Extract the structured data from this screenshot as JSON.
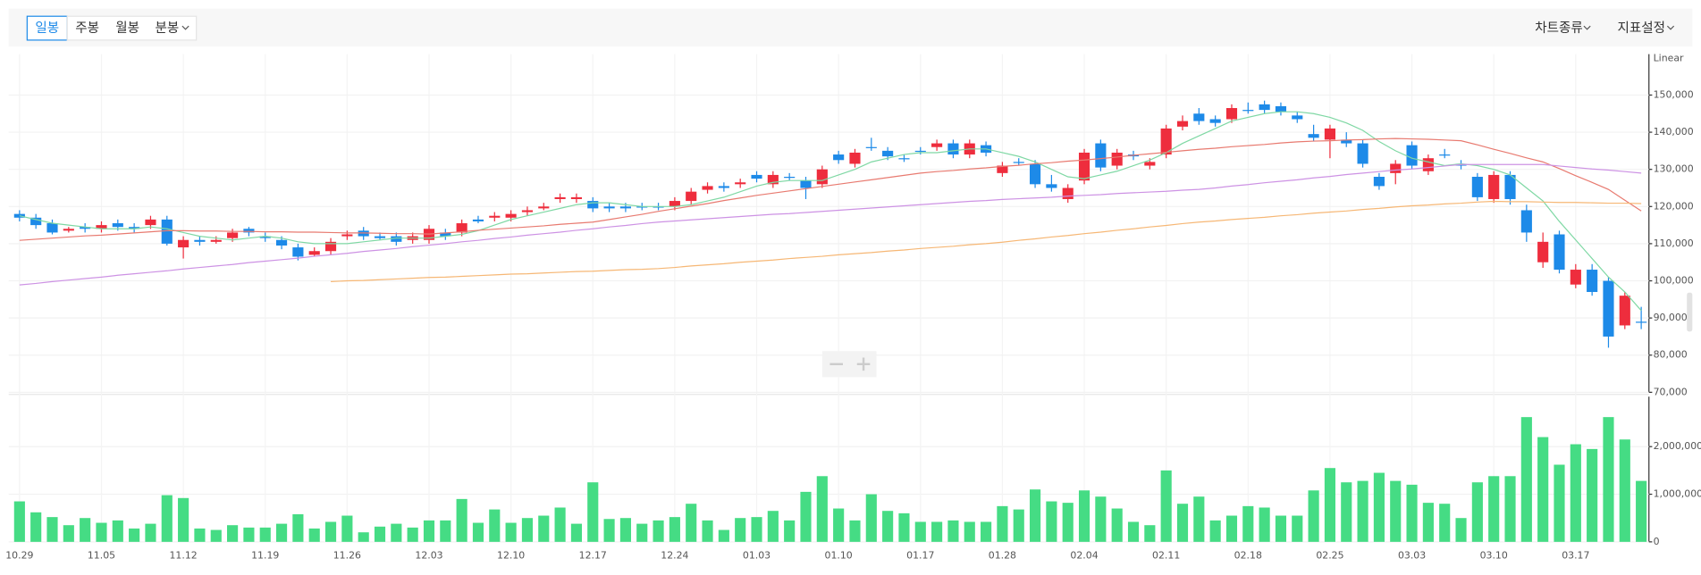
{
  "toolbar": {
    "tabs": [
      "일봉",
      "주봉",
      "월봉",
      "분봉"
    ],
    "menus": [
      "차트종류",
      "지표설정"
    ]
  },
  "chart_data": [
    {
      "type": "candlestick",
      "scale_label": "Linear",
      "up_color": "#ee2d3d",
      "down_color": "#1d8ae8",
      "grid": true,
      "ylim": [
        70000,
        161000
      ],
      "yticks": [
        {
          "value": 70000,
          "label": "70,000"
        },
        {
          "value": 80000,
          "label": "80,000"
        },
        {
          "value": 90000,
          "label": "90,000"
        },
        {
          "value": 100000,
          "label": "100,000"
        },
        {
          "value": 110000,
          "label": "110,000"
        },
        {
          "value": 120000,
          "label": "120,000"
        },
        {
          "value": 130000,
          "label": "130,000"
        },
        {
          "value": 140000,
          "label": "140,000"
        },
        {
          "value": 150000,
          "label": "150,000"
        }
      ],
      "open": [
        118000,
        117000,
        115500,
        113500,
        114500,
        114000,
        115500,
        114500,
        115000,
        116500,
        109000,
        111000,
        110500,
        111500,
        114000,
        112000,
        111000,
        109000,
        107000,
        108000,
        112000,
        113500,
        112000,
        112000,
        111000,
        111000,
        113000,
        113000,
        116500,
        117000,
        117000,
        118500,
        119500,
        122000,
        122000,
        121500,
        120000,
        120000,
        120000,
        120000,
        120000,
        121500,
        124500,
        125500,
        126000,
        128500,
        126000,
        128000,
        127000,
        126000,
        134000,
        131500,
        136000,
        135000,
        133000,
        135000,
        136000,
        137000,
        134000,
        136500,
        129000,
        132000,
        131500,
        126000,
        122000,
        127000,
        137000,
        131000,
        134000,
        131000,
        134000,
        141500,
        145000,
        143500,
        143500,
        146000,
        147500,
        147000,
        144500,
        139500,
        138000,
        138000,
        137000,
        128000,
        129000,
        136500,
        129500,
        134000,
        131500,
        128000,
        122000,
        128500,
        119000,
        105000,
        112500,
        99000,
        103000,
        100000,
        88000,
        89000
      ],
      "high": [
        119000,
        118000,
        116500,
        114500,
        115500,
        116000,
        116500,
        115500,
        117500,
        117500,
        112000,
        112000,
        112000,
        114000,
        114500,
        113000,
        112000,
        110000,
        109000,
        111500,
        113500,
        114500,
        113000,
        113000,
        113000,
        115000,
        114000,
        116500,
        117500,
        118500,
        119000,
        120000,
        121000,
        123500,
        123500,
        122500,
        121000,
        121000,
        121000,
        121000,
        122500,
        125000,
        126500,
        126500,
        127500,
        129500,
        129500,
        129000,
        128000,
        131000,
        135000,
        135500,
        138500,
        136000,
        134000,
        136000,
        138000,
        138000,
        138000,
        137500,
        132000,
        133000,
        132500,
        128500,
        126000,
        135500,
        138000,
        135500,
        135000,
        133000,
        142000,
        144500,
        146500,
        144500,
        147500,
        148000,
        148500,
        148000,
        145500,
        142000,
        142000,
        140000,
        138000,
        129000,
        132500,
        137500,
        134000,
        135500,
        132500,
        129000,
        129500,
        129500,
        120500,
        113000,
        113500,
        104500,
        104500,
        101000,
        97000,
        93000
      ],
      "low": [
        116000,
        114000,
        112500,
        113000,
        113000,
        113000,
        113500,
        113000,
        114000,
        109500,
        106000,
        109500,
        110000,
        110500,
        112000,
        110500,
        108500,
        105500,
        106500,
        107000,
        111000,
        111000,
        111000,
        109500,
        110000,
        110000,
        111000,
        112000,
        115500,
        116000,
        116000,
        117500,
        119000,
        121000,
        121000,
        118500,
        118500,
        118500,
        119000,
        119000,
        119000,
        120500,
        123500,
        124000,
        125000,
        126500,
        125000,
        127000,
        122000,
        125000,
        131500,
        130500,
        135000,
        132500,
        132000,
        134000,
        135000,
        133000,
        133000,
        133500,
        128000,
        131000,
        125000,
        124000,
        121000,
        126000,
        129500,
        130000,
        132500,
        130000,
        133000,
        140500,
        142000,
        141500,
        142500,
        145000,
        145000,
        144500,
        142500,
        137500,
        133000,
        136000,
        130500,
        124500,
        126000,
        130000,
        128500,
        133000,
        130000,
        121500,
        121000,
        120500,
        110500,
        103500,
        102000,
        98000,
        96000,
        82000,
        87000,
        87000
      ],
      "close": [
        117000,
        115000,
        113000,
        114000,
        114000,
        115000,
        114500,
        114000,
        116500,
        110000,
        111000,
        110500,
        111000,
        113000,
        113000,
        111500,
        109500,
        106500,
        108000,
        110500,
        112500,
        112000,
        111500,
        110500,
        112000,
        114000,
        112000,
        115500,
        116000,
        117500,
        118000,
        119000,
        120000,
        122500,
        122500,
        119500,
        119500,
        119500,
        119800,
        120000,
        121500,
        124000,
        125500,
        125000,
        126500,
        127500,
        128500,
        128000,
        125000,
        130000,
        132500,
        134500,
        136000,
        133500,
        133000,
        135000,
        137000,
        134000,
        137000,
        134500,
        131000,
        132000,
        126000,
        125000,
        125000,
        134500,
        130500,
        134500,
        133500,
        132000,
        141000,
        143000,
        143000,
        142500,
        146500,
        146000,
        146000,
        145500,
        143500,
        138500,
        141000,
        137000,
        131500,
        125500,
        131500,
        131000,
        133000,
        134000,
        131000,
        122500,
        128500,
        122000,
        113000,
        110500,
        103000,
        103000,
        97000,
        85000,
        96000,
        89000
      ],
      "series": [
        {
          "color": "#7fd8a4",
          "values": [
            117500,
            116500,
            115500,
            115000,
            114500,
            114000,
            114000,
            114000,
            114500,
            114000,
            113000,
            112000,
            111500,
            111000,
            111500,
            112000,
            111500,
            110500,
            110000,
            110000,
            110000,
            110500,
            111000,
            111500,
            111500,
            111500,
            112000,
            112500,
            113500,
            115000,
            116500,
            117500,
            118500,
            119500,
            120500,
            121000,
            121000,
            120500,
            120000,
            120000,
            120000,
            120500,
            121500,
            122500,
            124000,
            125500,
            126500,
            127000,
            127000,
            127000,
            128500,
            130000,
            132000,
            133000,
            134000,
            134500,
            134500,
            135000,
            135500,
            135500,
            134500,
            133500,
            132000,
            130000,
            128000,
            127500,
            128500,
            129500,
            131000,
            132500,
            134500,
            137000,
            139000,
            141000,
            143000,
            144000,
            145000,
            145500,
            145500,
            145000,
            144000,
            142500,
            140500,
            137500,
            135000,
            133000,
            132000,
            131000,
            131500,
            131000,
            130000,
            128500,
            125000,
            121500,
            116000,
            111000,
            106000,
            101000,
            97000,
            92000
          ]
        },
        {
          "color": "#e87a70",
          "values": [
            110900,
            111200,
            111500,
            111800,
            112100,
            112300,
            112600,
            112900,
            113200,
            113500,
            113500,
            113400,
            113400,
            113300,
            113300,
            113200,
            113200,
            113100,
            113100,
            113000,
            112900,
            112900,
            112800,
            112700,
            112700,
            112600,
            112900,
            113200,
            113600,
            113900,
            114200,
            114500,
            114800,
            115200,
            115500,
            115800,
            116500,
            117200,
            117900,
            118700,
            119400,
            120100,
            120800,
            121600,
            122300,
            123000,
            123600,
            124200,
            124800,
            125400,
            126000,
            126600,
            127200,
            127800,
            128400,
            129000,
            129400,
            129700,
            130100,
            130400,
            130800,
            131100,
            131500,
            131800,
            132200,
            132500,
            132900,
            133300,
            133800,
            134200,
            134600,
            135000,
            135400,
            135700,
            136100,
            136400,
            136700,
            137100,
            137400,
            137600,
            137700,
            137900,
            138000,
            138200,
            138300,
            138200,
            138100,
            137900,
            137700,
            136600,
            135400,
            134300,
            133100,
            132000,
            130200,
            128300,
            126500,
            124600,
            121700,
            118800
          ]
        },
        {
          "color": "#cd92e4",
          "values": [
            98900,
            99300,
            99800,
            100200,
            100600,
            101000,
            101500,
            101900,
            102300,
            102700,
            103200,
            103600,
            104000,
            104400,
            104900,
            105300,
            105700,
            106100,
            106600,
            107000,
            107400,
            107900,
            108300,
            108700,
            109200,
            109600,
            110000,
            110500,
            110900,
            111400,
            111800,
            112300,
            112700,
            113100,
            113600,
            114000,
            114500,
            114900,
            115400,
            115800,
            116100,
            116400,
            116700,
            117000,
            117300,
            117600,
            117900,
            118100,
            118400,
            118700,
            119000,
            119300,
            119600,
            119900,
            120200,
            120500,
            120800,
            121100,
            121400,
            121600,
            121900,
            122100,
            122300,
            122500,
            122800,
            123000,
            123200,
            123500,
            123700,
            123900,
            124100,
            124400,
            124600,
            125000,
            125500,
            125900,
            126400,
            126800,
            127200,
            127700,
            128100,
            128600,
            129000,
            129400,
            129800,
            130100,
            130500,
            130900,
            131300,
            131300,
            131300,
            131300,
            131300,
            131300,
            130900,
            130500,
            130100,
            129800,
            129400,
            129000
          ]
        },
        {
          "color": "#f6b775",
          "values": [
            null,
            null,
            null,
            null,
            null,
            null,
            null,
            null,
            null,
            null,
            null,
            null,
            null,
            null,
            null,
            null,
            null,
            null,
            null,
            99800,
            100000,
            100100,
            100300,
            100500,
            100700,
            100900,
            101000,
            101200,
            101400,
            101600,
            101800,
            101900,
            102100,
            102300,
            102500,
            102600,
            102800,
            103000,
            103100,
            103300,
            103600,
            104000,
            104300,
            104600,
            105000,
            105300,
            105600,
            106000,
            106300,
            106600,
            107000,
            107300,
            107600,
            108000,
            108300,
            108700,
            109000,
            109300,
            109700,
            110000,
            110400,
            110900,
            111300,
            111800,
            112200,
            112700,
            113100,
            113600,
            114000,
            114500,
            114900,
            115400,
            115800,
            116100,
            116500,
            116800,
            117100,
            117500,
            117800,
            118200,
            118500,
            118800,
            119200,
            119500,
            119900,
            120200,
            120400,
            120700,
            120900,
            121200,
            121400,
            121300,
            121300,
            121200,
            121100,
            121100,
            121000,
            120900,
            120900,
            120800
          ]
        }
      ]
    },
    {
      "type": "bar",
      "color": "#45dc84",
      "grid": true,
      "ylim": [
        0,
        3050000
      ],
      "yticks": [
        0,
        {
          "value": 1000000,
          "label": "1,000,000"
        },
        {
          "value": 2000000,
          "label": "2,000,000"
        }
      ],
      "categories": [
        "10.29",
        null,
        null,
        null,
        null,
        "11.05",
        null,
        null,
        null,
        null,
        "11.12",
        null,
        null,
        null,
        null,
        "11.19",
        null,
        null,
        null,
        null,
        "11.26",
        null,
        null,
        null,
        null,
        "12.03",
        null,
        null,
        null,
        null,
        "12.10",
        null,
        null,
        null,
        null,
        "12.17",
        null,
        null,
        null,
        null,
        "12.24",
        null,
        null,
        null,
        null,
        "01.03",
        null,
        null,
        null,
        null,
        "01.10",
        null,
        null,
        null,
        null,
        "01.17",
        null,
        null,
        null,
        null,
        "01.28",
        null,
        null,
        null,
        null,
        "02.04",
        null,
        null,
        null,
        null,
        "02.11",
        null,
        null,
        null,
        null,
        "02.18",
        null,
        null,
        null,
        null,
        "02.25",
        null,
        null,
        null,
        null,
        "03.03",
        null,
        null,
        null,
        null,
        "03.10",
        null,
        null,
        null,
        null,
        "03.17",
        null,
        null,
        null,
        null
      ],
      "values": [
        850000,
        620000,
        520000,
        350000,
        500000,
        400000,
        450000,
        280000,
        380000,
        980000,
        920000,
        280000,
        250000,
        350000,
        300000,
        300000,
        380000,
        580000,
        280000,
        420000,
        550000,
        200000,
        320000,
        380000,
        300000,
        450000,
        450000,
        900000,
        400000,
        680000,
        400000,
        500000,
        550000,
        720000,
        380000,
        1250000,
        480000,
        500000,
        380000,
        450000,
        520000,
        800000,
        450000,
        250000,
        500000,
        520000,
        650000,
        450000,
        1050000,
        1380000,
        700000,
        450000,
        1000000,
        650000,
        600000,
        420000,
        420000,
        450000,
        420000,
        420000,
        750000,
        680000,
        1100000,
        850000,
        820000,
        1080000,
        950000,
        700000,
        420000,
        350000,
        1500000,
        800000,
        950000,
        450000,
        550000,
        750000,
        720000,
        550000,
        550000,
        1080000,
        1550000,
        1250000,
        1280000,
        1450000,
        1280000,
        1200000,
        820000,
        800000,
        500000,
        1250000,
        1380000,
        1380000,
        2620000,
        2200000,
        1620000,
        2050000,
        1950000,
        2620000,
        2150000,
        1280000
      ]
    }
  ]
}
